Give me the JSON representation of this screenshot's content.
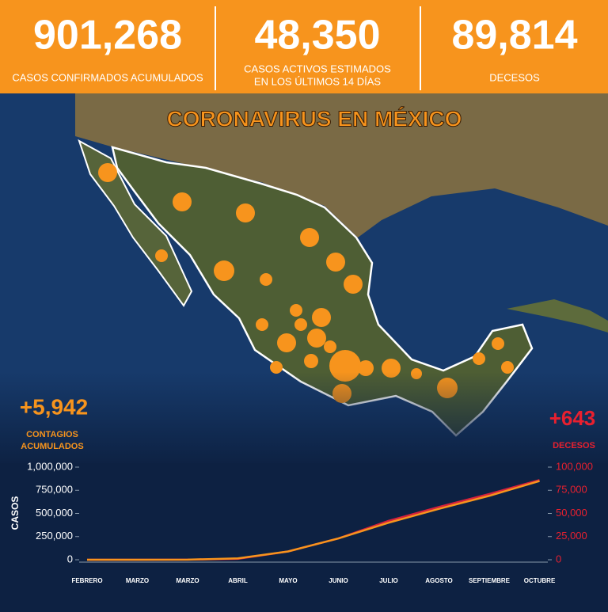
{
  "header": {
    "stats": [
      {
        "number": "901,268",
        "label": [
          "CASOS CONFIRMADOS ACUMULADOS"
        ]
      },
      {
        "number": "48,350",
        "label": [
          "CASOS ACTIVOS ESTIMADOS",
          "EN LOS ÚLTIMOS 14 DÍAS"
        ]
      },
      {
        "number": "89,814",
        "label": [
          "DECESOS"
        ]
      }
    ]
  },
  "map": {
    "title": "CORONAVIRUS EN MÉXICO"
  },
  "daily": {
    "cases": "+5,942",
    "cases_label": [
      "CONTAGIOS",
      "ACUMULADOS"
    ],
    "deaths": "+643",
    "deaths_label": "DECESOS"
  },
  "chart_data": {
    "type": "line",
    "ylabel": "CASOS",
    "categories": [
      "FEBRERO",
      "MARZO",
      "MARZO",
      "ABRIL",
      "MAYO",
      "JUNIO",
      "JULIO",
      "AGOSTO",
      "SEPTIEMBRE",
      "OCTUBRE"
    ],
    "series": [
      {
        "color": "#f7941d",
        "values": [
          0,
          0,
          1000,
          15000,
          90000,
          230000,
          400000,
          550000,
          690000,
          850000
        ]
      },
      {
        "color": "#d4213d",
        "axis": "y2",
        "values": [
          0,
          0,
          100,
          1000,
          9000,
          23000,
          42000,
          57000,
          71000,
          86000
        ]
      }
    ],
    "ylim": [
      0,
      1000000
    ],
    "yticks": [
      0,
      {
        "value": 250000,
        "label": "250,000"
      },
      {
        "value": 500000,
        "label": "500,000"
      },
      {
        "value": 750000,
        "label": "750,000"
      },
      {
        "value": 1000000,
        "label": "1,000,000"
      }
    ],
    "y2lim": [
      0,
      100000
    ],
    "y2ticks": [
      0,
      {
        "value": 25000,
        "label": "25,000"
      },
      {
        "value": 50000,
        "label": "50,000"
      },
      {
        "value": 75000,
        "label": "75,000"
      },
      {
        "value": 100000,
        "label": "100,000"
      }
    ],
    "grid": false
  }
}
